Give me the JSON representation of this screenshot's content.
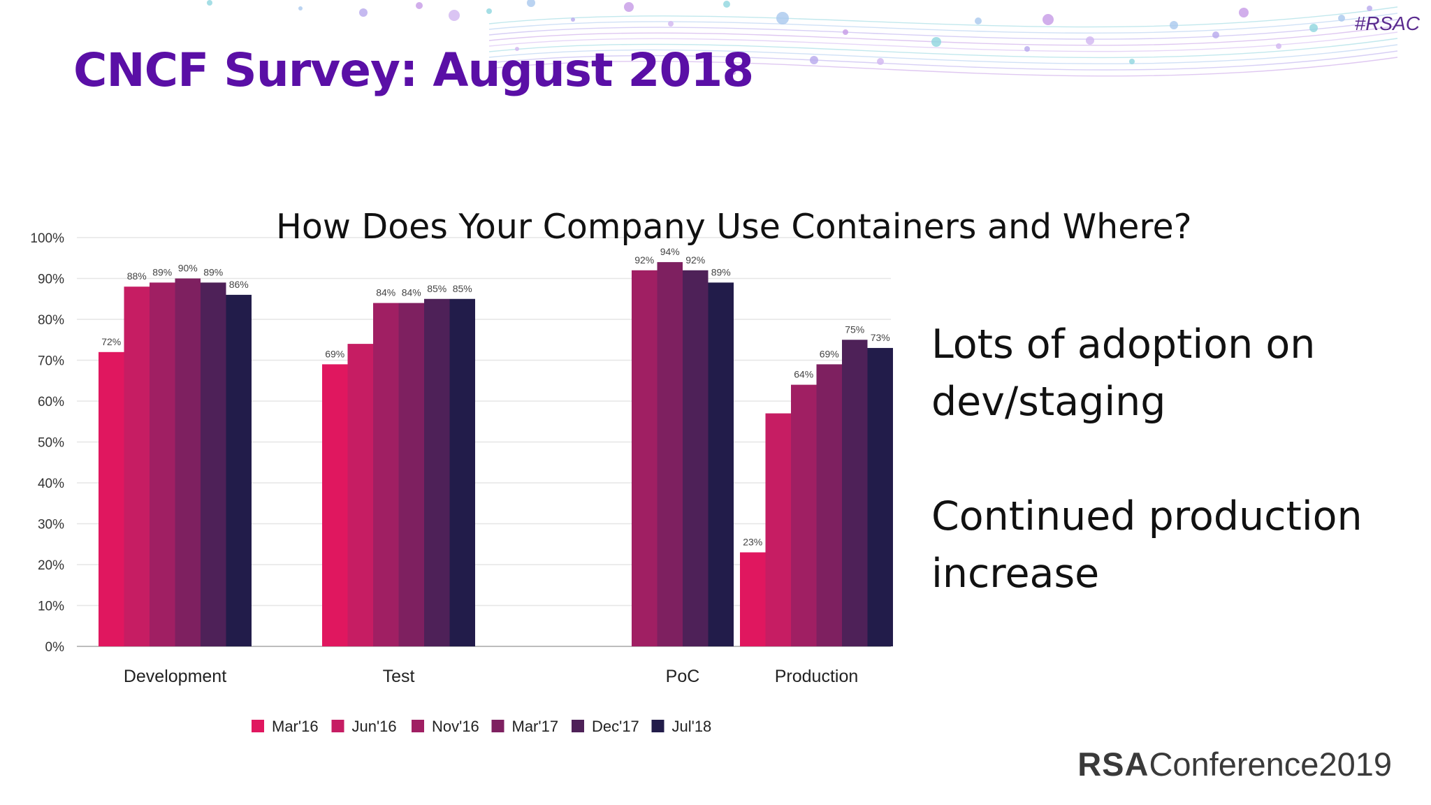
{
  "slide": {
    "hashtag": "#RSAC",
    "title": "CNCF Survey: August 2018",
    "bullets": [
      "Lots of adoption on dev/staging",
      "Continued production increase"
    ],
    "logo_rsa": "RSA",
    "logo_conference": "Conference2019"
  },
  "chart_data": {
    "type": "bar",
    "title": "How Does Your Company Use Containers and Where?",
    "xlabel": "",
    "ylabel": "",
    "ylim": [
      0,
      100
    ],
    "yticks": [
      "0%",
      "10%",
      "20%",
      "30%",
      "40%",
      "50%",
      "60%",
      "70%",
      "80%",
      "90%",
      "100%"
    ],
    "grid": true,
    "legend_position": "bottom",
    "categories": [
      "Development",
      "Test",
      "PoC",
      "Production"
    ],
    "series": [
      {
        "name": "Mar'16",
        "color": "#e0175f",
        "values": [
          72,
          69,
          null,
          23
        ],
        "labels": [
          "72%",
          "69%",
          "",
          "23%"
        ]
      },
      {
        "name": "Jun'16",
        "color": "#c61d63",
        "values": [
          88,
          74,
          null,
          57
        ],
        "labels": [
          "88%",
          "",
          "",
          ""
        ]
      },
      {
        "name": "Nov'16",
        "color": "#a01f63",
        "values": [
          89,
          84,
          92,
          64
        ],
        "labels": [
          "89%",
          "84%",
          "92%",
          "64%"
        ]
      },
      {
        "name": "Mar'17",
        "color": "#7e2060",
        "values": [
          90,
          84,
          94,
          69
        ],
        "labels": [
          "90%",
          "84%",
          "94%",
          "69%"
        ]
      },
      {
        "name": "Dec'17",
        "color": "#4e2158",
        "values": [
          89,
          85,
          92,
          75
        ],
        "labels": [
          "89%",
          "85%",
          "92%",
          "75%"
        ]
      },
      {
        "name": "Jul'18",
        "color": "#221c4a",
        "values": [
          86,
          85,
          89,
          73
        ],
        "labels": [
          "86%",
          "85%",
          "89%",
          "73%"
        ]
      }
    ]
  }
}
